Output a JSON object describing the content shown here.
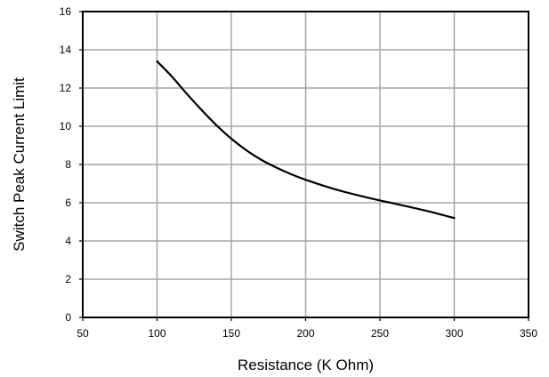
{
  "chart_data": {
    "type": "line",
    "title": "",
    "xlabel": "Resistance (K Ohm)",
    "ylabel": "Switch Peak Current Limit",
    "xlim": [
      50,
      350
    ],
    "ylim": [
      0,
      16
    ],
    "xticks": [
      50,
      100,
      150,
      200,
      250,
      300,
      350
    ],
    "yticks": [
      0,
      2,
      4,
      6,
      8,
      10,
      12,
      14,
      16
    ],
    "grid": true,
    "legend": "none",
    "colors": {
      "line": "#000000",
      "grid": "#a6a6a6",
      "frame": "#000000"
    },
    "series": [
      {
        "x": [
          100,
          110,
          120,
          130,
          140,
          150,
          160,
          170,
          180,
          190,
          200,
          220,
          240,
          260,
          280,
          300
        ],
        "y": [
          13.4,
          12.6,
          11.7,
          10.85,
          10.05,
          9.35,
          8.75,
          8.25,
          7.85,
          7.5,
          7.2,
          6.7,
          6.3,
          5.95,
          5.6,
          5.2
        ]
      }
    ]
  }
}
